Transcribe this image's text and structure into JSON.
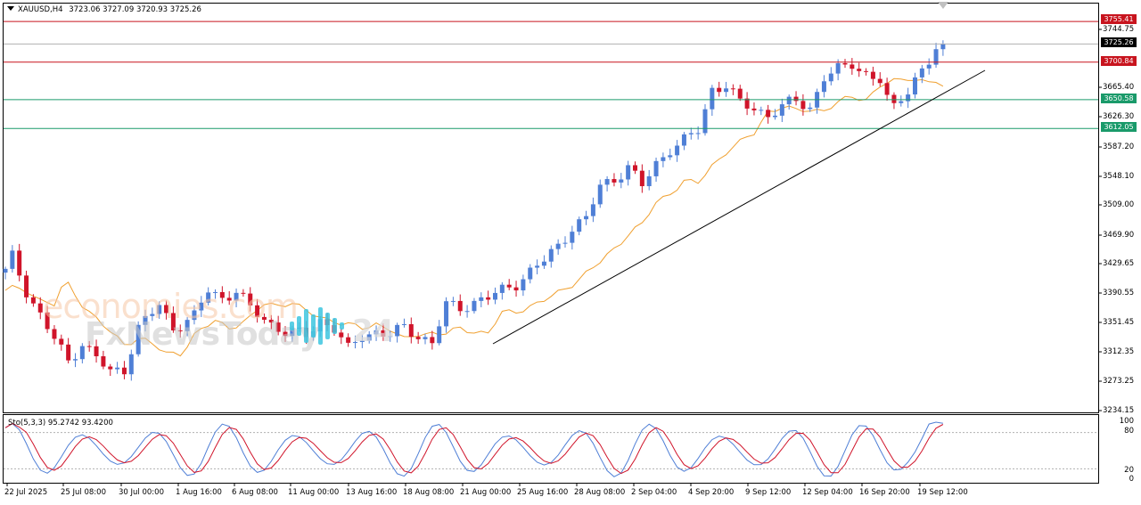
{
  "header": {
    "symbol": "XAUUSD,H4",
    "ohlc": "3723.06 3727.09 3720.93 3725.26"
  },
  "indicator": {
    "label": "Sto(5,3,3) 95.2742 93.4200",
    "levels": [
      "100",
      "80",
      "20",
      "0"
    ]
  },
  "price_axis": [
    "3744.75",
    "3665.40",
    "3626.30",
    "3587.20",
    "3548.10",
    "3509.00",
    "3469.90",
    "3429.65",
    "3390.55",
    "3351.45",
    "3312.35",
    "3273.25",
    "3234.15"
  ],
  "tags": {
    "resistance_top": "3755.41",
    "current_price": "3725.26",
    "resistance_2": "3700.84",
    "support_1": "3650.58",
    "support_2": "3612.05"
  },
  "time_axis": [
    "22 Jul 2025",
    "25 Jul 08:00",
    "30 Jul 00:00",
    "1 Aug 16:00",
    "6 Aug 08:00",
    "11 Aug 00:00",
    "13 Aug 16:00",
    "18 Aug 08:00",
    "21 Aug 00:00",
    "25 Aug 16:00",
    "28 Aug 08:00",
    "2 Sep 04:00",
    "4 Sep 20:00",
    "9 Sep 12:00",
    "12 Sep 04:00",
    "16 Sep 20:00",
    "19 Sep 12:00"
  ],
  "watermarks": {
    "line1": "economies.com",
    "line2": "FxNewsToday",
    "line3": "24"
  },
  "colors": {
    "bull": "#4f7fd6",
    "bear": "#d0142a",
    "resistance": "#c8141e",
    "support": "#1a9a6a",
    "ma": "#f0a030",
    "sto_main": "#4f7fd6",
    "sto_signal": "#d0142a"
  },
  "chart_data": {
    "type": "candlestick",
    "series": [
      {
        "name": "XAUUSD,H4",
        "values": "candles"
      }
    ],
    "y_range": [
      3234.15,
      3767
    ],
    "horizontal_levels": [
      3755.41,
      3725.26,
      3700.84,
      3650.58,
      3612.05
    ],
    "trendline": {
      "from": [
        "21 Aug 00:00",
        3320
      ],
      "to": [
        "19 Sep 12:00",
        3660
      ]
    },
    "anchors": [
      [
        0,
        3420
      ],
      [
        1,
        3440
      ],
      [
        3,
        3395
      ],
      [
        6,
        3345
      ],
      [
        9,
        3300
      ],
      [
        11,
        3325
      ],
      [
        13,
        3305
      ],
      [
        15,
        3285
      ],
      [
        17,
        3290
      ],
      [
        19,
        3345
      ],
      [
        22,
        3375
      ],
      [
        24,
        3345
      ],
      [
        27,
        3360
      ],
      [
        29,
        3395
      ],
      [
        31,
        3385
      ],
      [
        33,
        3395
      ],
      [
        35,
        3370
      ],
      [
        38,
        3350
      ],
      [
        40,
        3340
      ],
      [
        43,
        3335
      ],
      [
        45,
        3355
      ],
      [
        47,
        3345
      ],
      [
        49,
        3315
      ],
      [
        51,
        3335
      ],
      [
        53,
        3340
      ],
      [
        55,
        3335
      ],
      [
        57,
        3345
      ],
      [
        59,
        3335
      ],
      [
        61,
        3325
      ],
      [
        63,
        3375
      ],
      [
        65,
        3372
      ],
      [
        67,
        3380
      ],
      [
        69,
        3385
      ],
      [
        71,
        3395
      ],
      [
        73,
        3405
      ],
      [
        75,
        3420
      ],
      [
        77,
        3435
      ],
      [
        79,
        3455
      ],
      [
        81,
        3480
      ],
      [
        83,
        3490
      ],
      [
        85,
        3535
      ],
      [
        87,
        3545
      ],
      [
        89,
        3560
      ],
      [
        91,
        3535
      ],
      [
        93,
        3565
      ],
      [
        95,
        3585
      ],
      [
        97,
        3595
      ],
      [
        99,
        3610
      ],
      [
        101,
        3665
      ],
      [
        103,
        3670
      ],
      [
        105,
        3645
      ],
      [
        107,
        3640
      ],
      [
        109,
        3630
      ],
      [
        111,
        3640
      ],
      [
        113,
        3650
      ],
      [
        115,
        3640
      ],
      [
        117,
        3680
      ],
      [
        119,
        3690
      ],
      [
        121,
        3700
      ],
      [
        123,
        3685
      ],
      [
        125,
        3675
      ],
      [
        126,
        3650
      ],
      [
        127,
        3640
      ],
      [
        128,
        3655
      ],
      [
        129,
        3665
      ],
      [
        130,
        3678
      ],
      [
        131,
        3690
      ],
      [
        132,
        3700
      ],
      [
        133,
        3715
      ],
      [
        134,
        3725
      ]
    ],
    "stochastic": {
      "k_last": 95.2742,
      "d_last": 93.42,
      "levels": [
        80,
        20
      ]
    }
  }
}
